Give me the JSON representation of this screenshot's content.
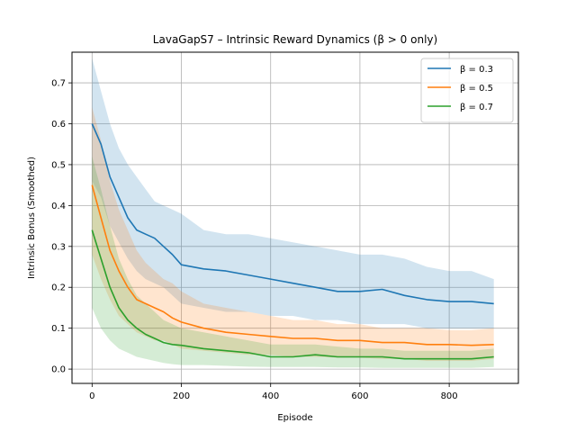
{
  "chart_data": {
    "type": "line",
    "title": "LavaGapS7 – Intrinsic Reward Dynamics (β > 0 only)",
    "xlabel": "Episode",
    "ylabel": "Intrinsic Bonus (Smoothed)",
    "xlim": [
      -45,
      955
    ],
    "ylim": [
      -0.035,
      0.775
    ],
    "xticks": [
      0,
      200,
      400,
      600,
      800
    ],
    "yticks": [
      0.0,
      0.1,
      0.2,
      0.3,
      0.4,
      0.5,
      0.6,
      0.7
    ],
    "ytick_labels": [
      "0.0",
      "0.1",
      "0.2",
      "0.3",
      "0.4",
      "0.5",
      "0.6",
      "0.7"
    ],
    "grid": true,
    "legend_position": "top-right",
    "x": [
      0,
      20,
      40,
      60,
      80,
      100,
      120,
      140,
      160,
      180,
      200,
      250,
      300,
      350,
      400,
      450,
      500,
      550,
      600,
      650,
      700,
      750,
      800,
      850,
      900
    ],
    "series": [
      {
        "name": "β = 0.3",
        "color": "#1f77b4",
        "values": [
          0.6,
          0.55,
          0.47,
          0.42,
          0.37,
          0.34,
          0.33,
          0.32,
          0.3,
          0.28,
          0.255,
          0.245,
          0.24,
          0.23,
          0.22,
          0.21,
          0.2,
          0.19,
          0.19,
          0.195,
          0.18,
          0.17,
          0.165,
          0.165,
          0.16
        ],
        "upper": [
          0.76,
          0.68,
          0.6,
          0.54,
          0.5,
          0.47,
          0.44,
          0.41,
          0.4,
          0.39,
          0.38,
          0.34,
          0.33,
          0.33,
          0.32,
          0.31,
          0.3,
          0.29,
          0.28,
          0.28,
          0.27,
          0.25,
          0.24,
          0.24,
          0.22
        ],
        "lower": [
          0.46,
          0.42,
          0.35,
          0.31,
          0.27,
          0.24,
          0.22,
          0.21,
          0.2,
          0.18,
          0.16,
          0.15,
          0.14,
          0.14,
          0.13,
          0.13,
          0.12,
          0.12,
          0.11,
          0.11,
          0.11,
          0.1,
          0.1,
          0.1,
          0.1
        ]
      },
      {
        "name": "β = 0.5",
        "color": "#ff7f0e",
        "values": [
          0.45,
          0.37,
          0.29,
          0.24,
          0.2,
          0.17,
          0.16,
          0.15,
          0.14,
          0.125,
          0.115,
          0.1,
          0.09,
          0.085,
          0.08,
          0.075,
          0.075,
          0.07,
          0.07,
          0.065,
          0.065,
          0.06,
          0.06,
          0.058,
          0.06
        ],
        "upper": [
          0.64,
          0.56,
          0.46,
          0.39,
          0.34,
          0.29,
          0.26,
          0.24,
          0.22,
          0.21,
          0.19,
          0.16,
          0.15,
          0.14,
          0.13,
          0.12,
          0.12,
          0.11,
          0.11,
          0.1,
          0.1,
          0.1,
          0.095,
          0.095,
          0.1
        ],
        "lower": [
          0.28,
          0.22,
          0.17,
          0.13,
          0.11,
          0.09,
          0.08,
          0.07,
          0.07,
          0.06,
          0.05,
          0.045,
          0.04,
          0.035,
          0.035,
          0.03,
          0.03,
          0.028,
          0.028,
          0.025,
          0.025,
          0.02,
          0.02,
          0.02,
          0.025
        ]
      },
      {
        "name": "β = 0.7",
        "color": "#2ca02c",
        "values": [
          0.34,
          0.27,
          0.2,
          0.15,
          0.12,
          0.1,
          0.085,
          0.075,
          0.065,
          0.06,
          0.058,
          0.05,
          0.045,
          0.04,
          0.03,
          0.03,
          0.035,
          0.03,
          0.03,
          0.03,
          0.025,
          0.025,
          0.025,
          0.025,
          0.03
        ],
        "upper": [
          0.52,
          0.44,
          0.35,
          0.27,
          0.22,
          0.18,
          0.16,
          0.14,
          0.12,
          0.11,
          0.1,
          0.09,
          0.08,
          0.07,
          0.06,
          0.06,
          0.06,
          0.055,
          0.05,
          0.05,
          0.045,
          0.045,
          0.045,
          0.045,
          0.05
        ],
        "lower": [
          0.15,
          0.1,
          0.07,
          0.05,
          0.04,
          0.03,
          0.025,
          0.02,
          0.015,
          0.012,
          0.01,
          0.01,
          0.008,
          0.006,
          0.005,
          0.005,
          0.005,
          0.004,
          0.004,
          0.003,
          0.003,
          0.003,
          0.003,
          0.003,
          0.005
        ]
      }
    ]
  }
}
